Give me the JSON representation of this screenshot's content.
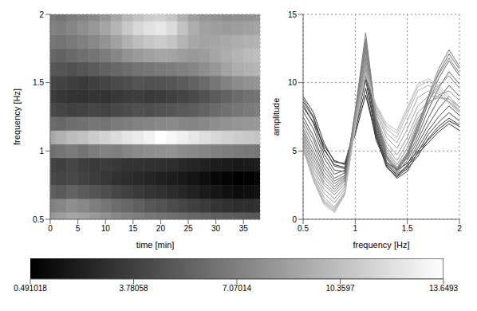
{
  "chart_data": {
    "type": "surface",
    "x_label": "time [min]",
    "y_label": "frequency [Hz]",
    "z_label": "amplitude",
    "x": [
      0,
      2,
      4,
      6,
      8,
      10,
      12,
      14,
      16,
      18,
      20,
      22,
      24,
      26,
      28,
      30,
      32,
      34,
      36,
      38
    ],
    "y": [
      0.5,
      0.6,
      0.7,
      0.8,
      0.9,
      1.0,
      1.1,
      1.2,
      1.3,
      1.4,
      1.5,
      1.6,
      1.7,
      1.8,
      1.9,
      2.0
    ],
    "xlim": [
      0,
      38
    ],
    "xticks": [
      0,
      5,
      10,
      15,
      20,
      25,
      30,
      35
    ],
    "ylim": [
      0.5,
      2
    ],
    "yticks": [
      0.5,
      1,
      1.5,
      2
    ],
    "zlim": [
      0,
      15
    ],
    "zticks": [
      0,
      5,
      10,
      15
    ],
    "grid": true,
    "z": [
      [
        8.2,
        7.1,
        5.4,
        4.3,
        4.0,
        6.2,
        9.1,
        6.0,
        4.2,
        3.6,
        4.1,
        5.0,
        5.8,
        6.6,
        7.2,
        6.8
      ],
      [
        8.6,
        7.4,
        5.1,
        4.0,
        3.8,
        6.5,
        9.6,
        5.8,
        4.0,
        3.3,
        3.9,
        4.8,
        5.6,
        6.4,
        7.0,
        6.5
      ],
      [
        9.0,
        7.8,
        5.6,
        4.2,
        4.1,
        6.8,
        10.2,
        6.1,
        3.8,
        3.1,
        3.7,
        4.6,
        5.9,
        6.8,
        7.4,
        6.9
      ],
      [
        8.8,
        7.5,
        5.2,
        3.9,
        3.7,
        6.4,
        10.5,
        6.3,
        3.9,
        3.0,
        3.5,
        4.9,
        6.2,
        7.1,
        7.8,
        7.2
      ],
      [
        8.4,
        7.0,
        4.8,
        3.6,
        3.5,
        6.9,
        11.0,
        6.6,
        4.1,
        3.2,
        3.8,
        5.2,
        6.5,
        7.5,
        8.3,
        7.6
      ],
      [
        7.9,
        6.6,
        4.5,
        3.3,
        3.6,
        7.2,
        11.4,
        6.4,
        3.9,
        3.1,
        4.0,
        5.5,
        6.9,
        8.1,
        9.0,
        8.2
      ],
      [
        7.5,
        6.1,
        4.1,
        3.0,
        3.4,
        7.0,
        11.8,
        6.8,
        4.2,
        3.4,
        4.3,
        5.8,
        7.4,
        8.8,
        9.8,
        9.0
      ],
      [
        7.2,
        5.8,
        3.8,
        2.8,
        3.2,
        7.4,
        12.3,
        7.0,
        4.4,
        3.6,
        4.5,
        6.1,
        8.0,
        9.6,
        10.8,
        9.9
      ],
      [
        6.9,
        5.4,
        3.5,
        2.6,
        3.1,
        7.6,
        12.6,
        7.2,
        4.6,
        3.7,
        4.8,
        6.4,
        8.5,
        10.3,
        11.6,
        10.5
      ],
      [
        6.6,
        5.0,
        3.2,
        2.4,
        3.0,
        7.8,
        13.0,
        7.3,
        4.5,
        3.5,
        4.6,
        6.6,
        8.8,
        10.7,
        12.1,
        11.0
      ],
      [
        6.4,
        4.7,
        3.0,
        2.2,
        2.9,
        7.9,
        13.6493,
        7.5,
        4.7,
        3.6,
        4.7,
        6.8,
        9.0,
        11.0,
        12.4,
        11.2
      ],
      [
        6.2,
        4.4,
        2.7,
        2.0,
        2.8,
        8.0,
        13.2,
        7.6,
        4.9,
        3.8,
        4.9,
        6.9,
        8.9,
        10.6,
        11.8,
        10.7
      ],
      [
        6.0,
        4.1,
        2.5,
        1.8,
        2.6,
        7.7,
        12.8,
        7.4,
        5.1,
        4.0,
        5.2,
        7.1,
        8.6,
        9.8,
        10.5,
        9.6
      ],
      [
        5.8,
        3.8,
        2.2,
        1.5,
        2.4,
        7.5,
        12.4,
        7.3,
        5.3,
        4.3,
        5.6,
        7.4,
        8.4,
        9.1,
        9.4,
        8.7
      ],
      [
        5.6,
        3.5,
        1.9,
        1.2,
        2.2,
        7.3,
        12.0,
        7.5,
        5.6,
        4.7,
        6.0,
        7.8,
        8.6,
        8.9,
        8.8,
        8.2
      ],
      [
        5.4,
        3.2,
        1.6,
        0.9,
        2.0,
        7.1,
        11.6,
        7.8,
        6.0,
        5.2,
        6.6,
        8.3,
        9.0,
        9.0,
        8.6,
        8.0
      ],
      [
        5.3,
        3.0,
        1.3,
        0.7,
        1.9,
        7.0,
        11.3,
        8.0,
        6.3,
        5.6,
        7.2,
        8.9,
        9.4,
        9.2,
        8.5,
        7.8
      ],
      [
        5.2,
        2.8,
        1.1,
        0.491018,
        1.8,
        6.8,
        11.0,
        8.2,
        6.6,
        6.0,
        7.7,
        9.4,
        9.8,
        9.4,
        8.6,
        7.9
      ],
      [
        5.1,
        2.9,
        1.2,
        0.6,
        1.9,
        6.7,
        10.8,
        8.3,
        6.8,
        6.3,
        8.0,
        9.7,
        10.1,
        9.6,
        8.8,
        8.0
      ],
      [
        5.0,
        3.0,
        1.4,
        0.8,
        2.0,
        6.6,
        10.6,
        8.4,
        7.0,
        6.5,
        8.2,
        9.9,
        10.3,
        9.8,
        9.0,
        8.2
      ]
    ],
    "colorbar": {
      "range": [
        0.491018,
        13.6493
      ],
      "ticks": [
        0.491018,
        3.78058,
        7.07014,
        10.3597,
        13.6493
      ]
    }
  }
}
